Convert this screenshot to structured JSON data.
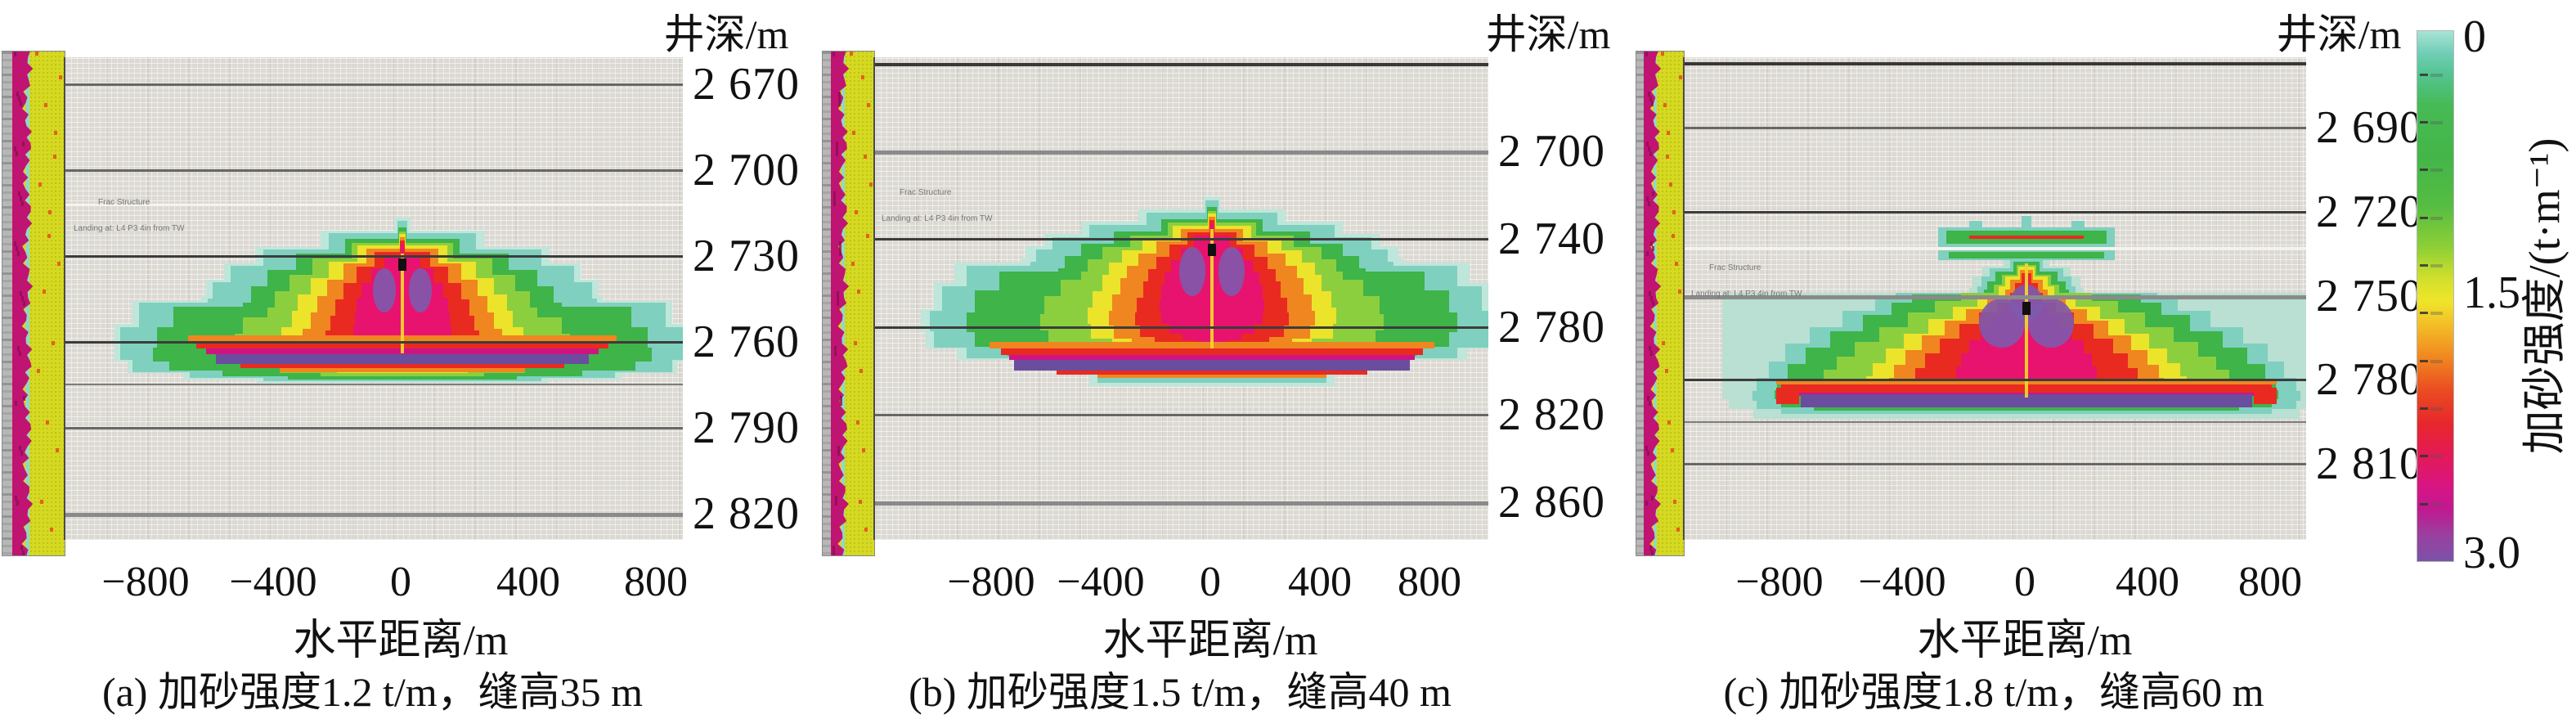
{
  "panels": [
    {
      "id": "a",
      "y_axis_title": "井深/m",
      "x_axis_title": "水平距离/m",
      "caption": "(a) 加砂强度1.2 t/m，缝高35 m",
      "x_ticks": [
        "−800",
        "−400",
        "0",
        "400",
        "800"
      ],
      "depth_labels": [
        "2 670",
        "2 700",
        "2 730",
        "2 760",
        "2 790",
        "2 820"
      ],
      "annotations": [
        "Frac Structure",
        "Landing at: L4 P3 4in from TW"
      ]
    },
    {
      "id": "b",
      "y_axis_title": "井深/m",
      "x_axis_title": "水平距离/m",
      "caption": "(b) 加砂强度1.5 t/m，缝高40 m",
      "x_ticks": [
        "−800",
        "−400",
        "0",
        "400",
        "800"
      ],
      "depth_labels": [
        "2 700",
        "2 740",
        "2 780",
        "2 820",
        "2 860"
      ],
      "annotations": [
        "Frac Structure",
        "Landing at: L4 P3 4in from TW"
      ]
    },
    {
      "id": "c",
      "y_axis_title": "井深/m",
      "x_axis_title": "水平距离/m",
      "caption": "(c) 加砂强度1.8 t/m，缝高60 m",
      "x_ticks": [
        "−800",
        "−400",
        "0",
        "400",
        "800"
      ],
      "depth_labels": [
        "2 690",
        "2 720",
        "2 750",
        "2 780",
        "2 810"
      ],
      "annotations": [
        "Frac Structure",
        "Landing at: L4 P3 4in from TW"
      ]
    }
  ],
  "colorbar": {
    "label": "加砂强度/(t·m⁻¹)",
    "ticks": [
      "0",
      "1.5",
      "3.0"
    ],
    "ticks_value": [
      0,
      1.5,
      3.0
    ],
    "orientation": "vertical",
    "colors_top_to_bottom": [
      "#a8e4d6",
      "#46ba55",
      "#8fd036",
      "#efe52a",
      "#f0831f",
      "#e7272b",
      "#d81584",
      "#7a52a8"
    ]
  },
  "chart_data": [
    {
      "panel": "a",
      "type": "heatmap",
      "title": "(a) 加砂强度1.2 t/m，缝高35 m",
      "sand_intensity_t_per_m": 1.2,
      "fracture_height_m": 35,
      "xlabel": "水平距离/m",
      "x_ticks": [
        -800,
        -400,
        0,
        400,
        800
      ],
      "x_range": [
        -1050,
        950
      ],
      "ylabel": "井深/m",
      "depth_ticks_m": [
        2670,
        2700,
        2730,
        2760,
        2790,
        2820
      ],
      "depth_range_m": [
        2661,
        2829
      ],
      "formation_lines_depth_m": [
        2670,
        2700,
        2712,
        2730,
        2760,
        2775,
        2790,
        2820
      ],
      "fracture_top_depth_m": 2722,
      "fracture_bottom_depth_m": 2772,
      "proppant_bank_depth_m": 2765,
      "value_label": "加砂强度/(t·m⁻¹)",
      "value_range": [
        0,
        3.0
      ]
    },
    {
      "panel": "b",
      "type": "heatmap",
      "title": "(b) 加砂强度1.5 t/m，缝高40 m",
      "sand_intensity_t_per_m": 1.5,
      "fracture_height_m": 40,
      "xlabel": "水平距离/m",
      "x_ticks": [
        -800,
        -400,
        0,
        400,
        800
      ],
      "x_range": [
        -1050,
        950
      ],
      "ylabel": "井深/m",
      "depth_ticks_m": [
        2700,
        2740,
        2780,
        2820,
        2860
      ],
      "depth_range_m": [
        2657,
        2877
      ],
      "formation_lines_depth_m": [
        2660,
        2700,
        2740,
        2780,
        2820,
        2860
      ],
      "fracture_top_depth_m": 2722,
      "fracture_bottom_depth_m": 2798,
      "proppant_bank_depth_m": 2790,
      "value_label": "加砂强度/(t·m⁻¹)",
      "value_range": [
        0,
        3.0
      ]
    },
    {
      "panel": "c",
      "type": "heatmap",
      "title": "(c) 加砂强度1.8 t/m，缝高60 m",
      "sand_intensity_t_per_m": 1.8,
      "fracture_height_m": 60,
      "xlabel": "水平距离/m",
      "x_ticks": [
        -800,
        -400,
        0,
        400,
        800
      ],
      "x_range": [
        -1050,
        950
      ],
      "ylabel": "井深/m",
      "depth_ticks_m": [
        2690,
        2720,
        2750,
        2780,
        2810
      ],
      "depth_range_m": [
        2665,
        2837
      ],
      "formation_lines_depth_m": [
        2667,
        2690,
        2720,
        2733,
        2750,
        2780,
        2795,
        2810
      ],
      "fracture_top_depth_m": 2723,
      "fracture_bottom_depth_m": 2791,
      "proppant_bank_depth_m": 2785,
      "value_label": "加砂强度/(t·m⁻¹)",
      "value_range": [
        0,
        3.0
      ]
    }
  ]
}
